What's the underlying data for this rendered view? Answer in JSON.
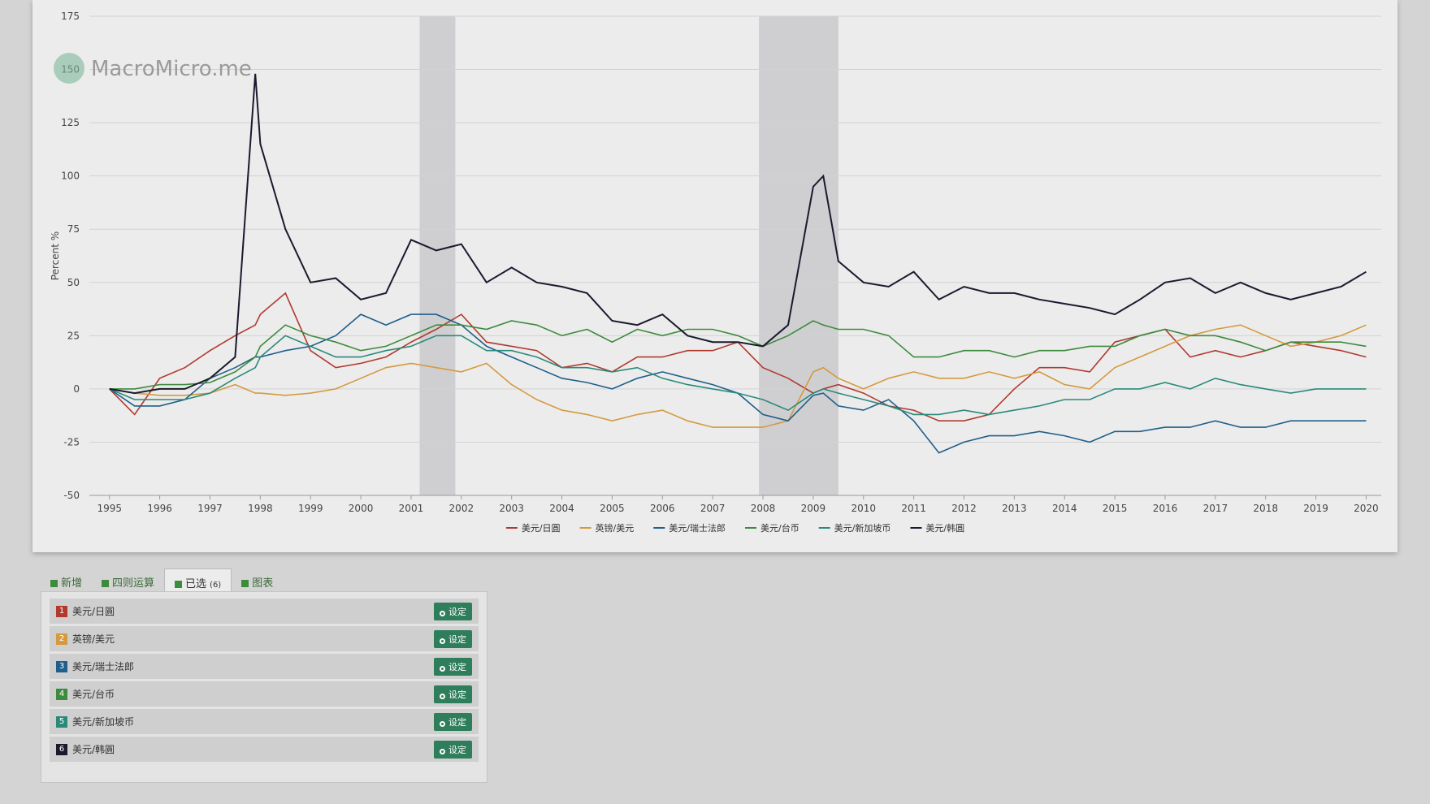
{
  "chart_data": {
    "type": "line",
    "watermark": "MacroMicro.me",
    "ylabel": "Percent %",
    "xlim": [
      1994.6,
      2020.3
    ],
    "ylim": [
      -50,
      175
    ],
    "xticks": [
      1995,
      1996,
      1997,
      1998,
      1999,
      2000,
      2001,
      2002,
      2003,
      2004,
      2005,
      2006,
      2007,
      2008,
      2009,
      2010,
      2011,
      2012,
      2013,
      2014,
      2015,
      2016,
      2017,
      2018,
      2019,
      2020
    ],
    "yticks": [
      -50,
      -25,
      0,
      25,
      50,
      75,
      100,
      125,
      150,
      175
    ],
    "grid": true,
    "legend": "bottom",
    "shaded_ranges": [
      [
        2001.17,
        2001.88
      ],
      [
        2007.92,
        2009.5
      ]
    ],
    "x": [
      1995,
      1995.5,
      1996,
      1996.5,
      1997,
      1997.5,
      1997.9,
      1998,
      1998.5,
      1999,
      1999.5,
      2000,
      2000.5,
      2001,
      2001.5,
      2002,
      2002.5,
      2003,
      2003.5,
      2004,
      2004.5,
      2005,
      2005.5,
      2006,
      2006.5,
      2007,
      2007.5,
      2008,
      2008.5,
      2009,
      2009.2,
      2009.5,
      2010,
      2010.5,
      2011,
      2011.5,
      2012,
      2012.5,
      2013,
      2013.5,
      2014,
      2014.5,
      2015,
      2015.5,
      2016,
      2016.5,
      2017,
      2017.5,
      2018,
      2018.5,
      2019,
      2019.5,
      2020
    ],
    "series": [
      {
        "name": "美元/日圓",
        "color": "#b03a2e",
        "values": [
          0,
          -12,
          5,
          10,
          18,
          25,
          30,
          35,
          45,
          18,
          10,
          12,
          15,
          22,
          28,
          35,
          22,
          20,
          18,
          10,
          12,
          8,
          15,
          15,
          18,
          18,
          22,
          10,
          5,
          -2,
          0,
          2,
          -2,
          -8,
          -10,
          -15,
          -15,
          -12,
          0,
          10,
          10,
          8,
          22,
          25,
          28,
          15,
          18,
          15,
          18,
          22,
          20,
          18,
          15
        ]
      },
      {
        "name": "英镑/美元",
        "color": "#d49a3f",
        "values": [
          0,
          -2,
          -3,
          -3,
          -2,
          2,
          -2,
          -2,
          -3,
          -2,
          0,
          5,
          10,
          12,
          10,
          8,
          12,
          2,
          -5,
          -10,
          -12,
          -15,
          -12,
          -10,
          -15,
          -18,
          -18,
          -18,
          -15,
          8,
          10,
          5,
          0,
          5,
          8,
          5,
          5,
          8,
          5,
          8,
          2,
          0,
          10,
          15,
          20,
          25,
          28,
          30,
          25,
          20,
          22,
          25,
          30
        ]
      },
      {
        "name": "美元/瑞士法郎",
        "color": "#1f5f8b",
        "values": [
          0,
          -8,
          -8,
          -5,
          5,
          10,
          15,
          15,
          18,
          20,
          25,
          35,
          30,
          35,
          35,
          30,
          20,
          15,
          10,
          5,
          3,
          0,
          5,
          8,
          5,
          2,
          -2,
          -12,
          -15,
          -3,
          -2,
          -8,
          -10,
          -5,
          -15,
          -30,
          -25,
          -22,
          -22,
          -20,
          -22,
          -25,
          -20,
          -20,
          -18,
          -18,
          -15,
          -18,
          -18,
          -15,
          -15,
          -15,
          -15
        ]
      },
      {
        "name": "美元/台币",
        "color": "#3d8b3d",
        "values": [
          0,
          0,
          2,
          2,
          3,
          8,
          15,
          20,
          30,
          25,
          22,
          18,
          20,
          25,
          30,
          30,
          28,
          32,
          30,
          25,
          28,
          22,
          28,
          25,
          28,
          28,
          25,
          20,
          25,
          32,
          30,
          28,
          28,
          25,
          15,
          15,
          18,
          18,
          15,
          18,
          18,
          20,
          20,
          25,
          28,
          25,
          25,
          22,
          18,
          22,
          22,
          22,
          20
        ]
      },
      {
        "name": "美元/新加坡币",
        "color": "#2a8a7a",
        "values": [
          0,
          -5,
          -5,
          -5,
          -2,
          5,
          10,
          15,
          25,
          20,
          15,
          15,
          18,
          20,
          25,
          25,
          18,
          18,
          15,
          10,
          10,
          8,
          10,
          5,
          2,
          0,
          -2,
          -5,
          -10,
          -2,
          0,
          -2,
          -5,
          -8,
          -12,
          -12,
          -10,
          -12,
          -10,
          -8,
          -5,
          -5,
          0,
          0,
          3,
          0,
          5,
          2,
          0,
          -2,
          0,
          0,
          0
        ]
      },
      {
        "name": "美元/韩圓",
        "color": "#1a1a2e",
        "values": [
          0,
          -2,
          0,
          0,
          5,
          15,
          148,
          115,
          75,
          50,
          52,
          42,
          45,
          70,
          65,
          68,
          50,
          57,
          50,
          48,
          45,
          32,
          30,
          35,
          25,
          22,
          22,
          20,
          30,
          95,
          100,
          60,
          50,
          48,
          55,
          42,
          48,
          45,
          45,
          42,
          40,
          38,
          35,
          42,
          50,
          52,
          45,
          50,
          45,
          42,
          45,
          48,
          55
        ]
      }
    ]
  },
  "panel": {
    "tabs": [
      "新增",
      "四则运算",
      "已选",
      "图表"
    ],
    "selected_count": "(6)",
    "items": [
      {
        "index": 1,
        "name": "美元/日圓",
        "color": "#b03a2e",
        "button": "设定"
      },
      {
        "index": 2,
        "name": "英镑/美元",
        "color": "#d49a3f",
        "button": "设定"
      },
      {
        "index": 3,
        "name": "美元/瑞士法郎",
        "color": "#1f5f8b",
        "button": "设定"
      },
      {
        "index": 4,
        "name": "美元/台币",
        "color": "#3d8b3d",
        "button": "设定"
      },
      {
        "index": 5,
        "name": "美元/新加坡币",
        "color": "#2a8a7a",
        "button": "设定"
      },
      {
        "index": 6,
        "name": "美元/韩圓",
        "color": "#1a1a2e",
        "button": "设定"
      }
    ]
  }
}
